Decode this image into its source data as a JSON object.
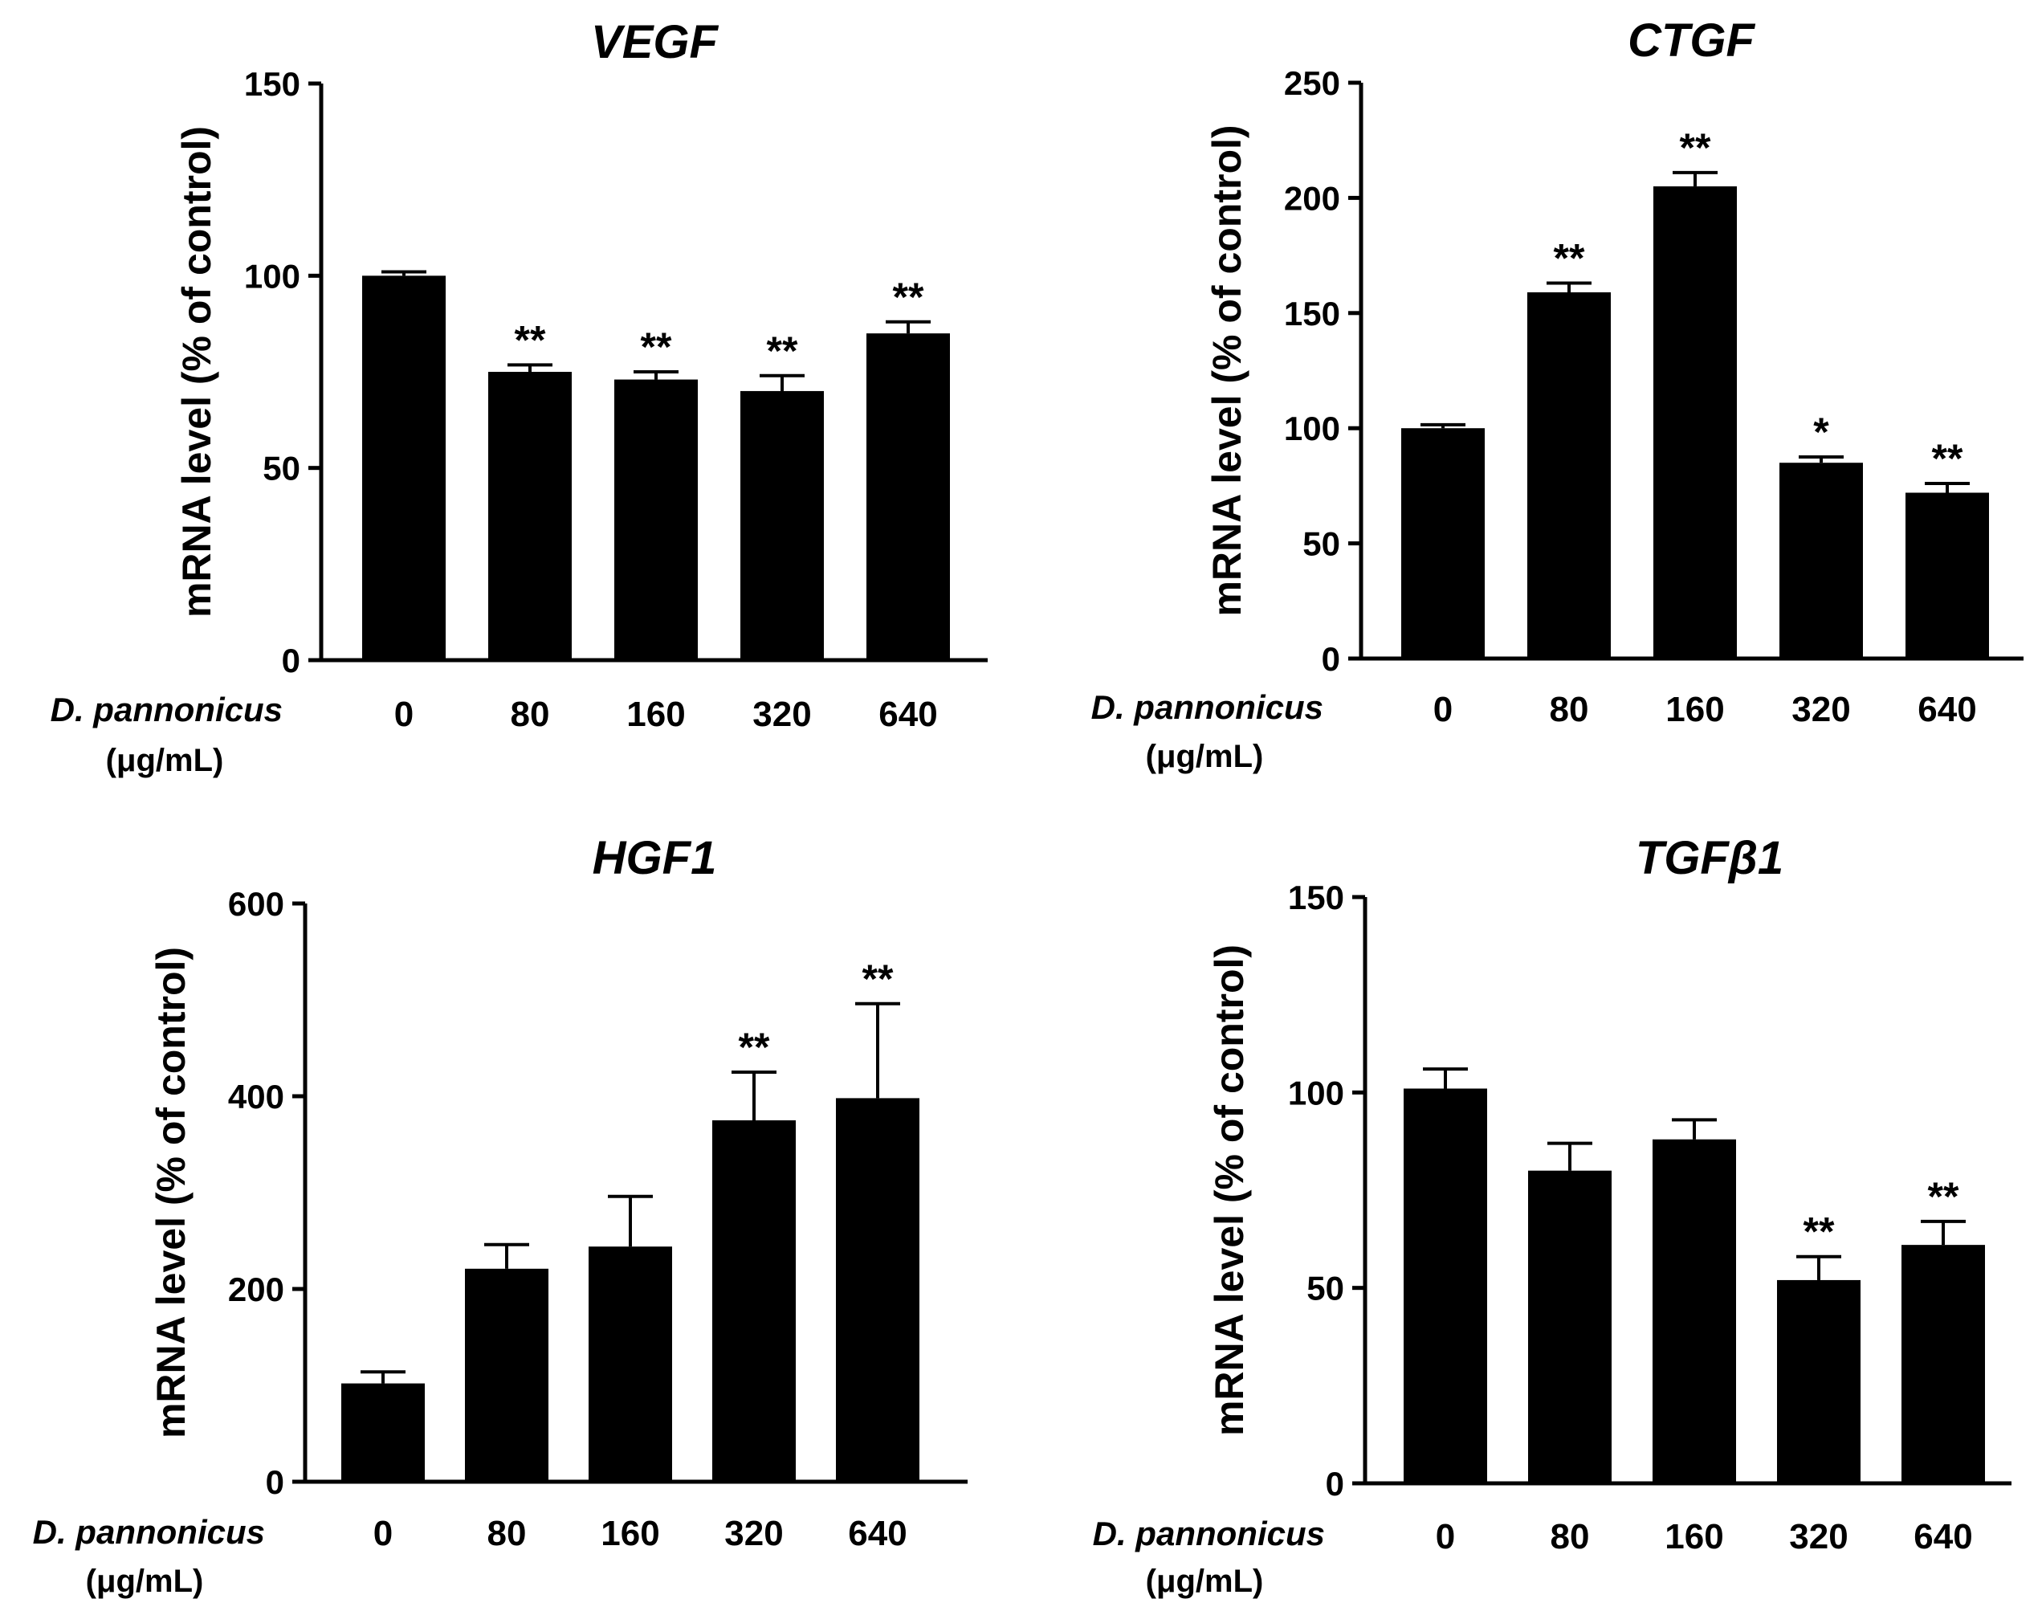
{
  "chart_data": [
    {
      "type": "bar",
      "title": "VEGF",
      "ylabel": "mRNA level (% of control)",
      "xlabel": "D. pannonicus",
      "xlabel_unit": "(μg/mL)",
      "categories": [
        "0",
        "80",
        "160",
        "320",
        "640"
      ],
      "values": [
        100,
        75,
        73,
        70,
        85
      ],
      "errors": [
        1,
        1.8,
        2,
        4,
        3
      ],
      "significance": [
        "",
        "**",
        "**",
        "**",
        "**"
      ],
      "ylim": [
        0,
        150
      ],
      "yticks": [
        "0",
        "50",
        "100",
        "150"
      ],
      "bar_color": "#000000",
      "grid": false,
      "legend": "none"
    },
    {
      "type": "bar",
      "title": "CTGF",
      "ylabel": "mRNA level (% of control)",
      "xlabel": "D. pannonicus",
      "xlabel_unit": "(μg/mL)",
      "categories": [
        "0",
        "80",
        "160",
        "320",
        "640"
      ],
      "values": [
        100,
        159,
        205,
        85,
        72
      ],
      "errors": [
        1.5,
        4,
        6,
        2.5,
        4
      ],
      "significance": [
        "",
        "**",
        "**",
        "*",
        "**"
      ],
      "ylim": [
        0,
        250
      ],
      "yticks": [
        "0",
        "50",
        "100",
        "150",
        "200",
        "250"
      ],
      "bar_color": "#000000",
      "grid": false,
      "legend": "none"
    },
    {
      "type": "bar",
      "title": "HGF1",
      "ylabel": "mRNA level (% of control)",
      "xlabel": "D. pannonicus",
      "xlabel_unit": "(μg/mL)",
      "categories": [
        "0",
        "80",
        "160",
        "320",
        "640"
      ],
      "values": [
        102,
        221,
        244,
        375,
        398
      ],
      "errors": [
        12,
        25,
        52,
        50,
        98
      ],
      "significance": [
        "",
        "",
        "",
        "**",
        "**"
      ],
      "ylim": [
        0,
        600
      ],
      "yticks": [
        "0",
        "200",
        "400",
        "600"
      ],
      "bar_color": "#000000",
      "grid": false,
      "legend": "none"
    },
    {
      "type": "bar",
      "title": "TGFβ1",
      "ylabel": "mRNA level (% of control)",
      "xlabel": "D. pannonicus",
      "xlabel_unit": "(μg/mL)",
      "categories": [
        "0",
        "80",
        "160",
        "320",
        "640"
      ],
      "values": [
        101,
        80,
        88,
        52,
        61
      ],
      "errors": [
        5,
        7,
        5,
        6,
        6
      ],
      "significance": [
        "",
        "",
        "",
        "**",
        "**"
      ],
      "ylim": [
        0,
        150
      ],
      "yticks": [
        "0",
        "50",
        "100",
        "150"
      ],
      "bar_color": "#000000",
      "grid": false,
      "legend": "none"
    }
  ]
}
